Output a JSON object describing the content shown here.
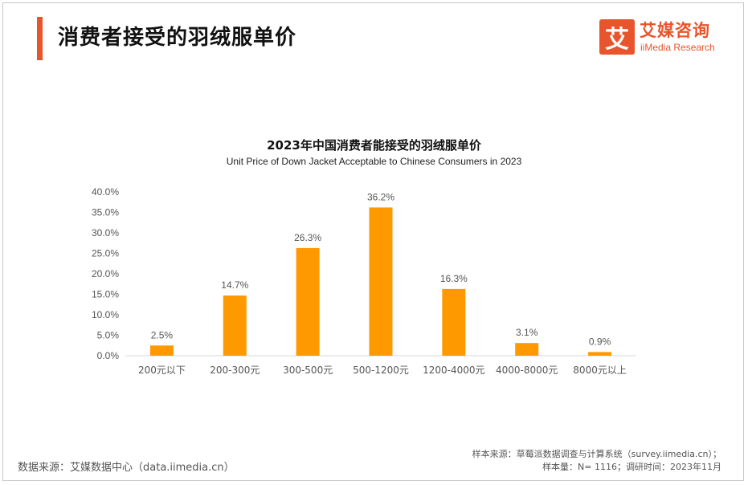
{
  "header": {
    "title": "消费者接受的羽绒服单价"
  },
  "logo": {
    "mark": "艾",
    "cn": "艾媒咨询",
    "en": "iiMedia Research"
  },
  "footer": {
    "source_left": "数据来源：艾媒数据中心（data.iimedia.cn）",
    "sample_source": "样本来源：草莓派数据调查与计算系统（survey.iimedia.cn）；",
    "sample_info": "样本量：N= 1116；调研时间：2023年11月"
  },
  "colors": {
    "accent": "#e8552c",
    "bar": "#ff9900",
    "axis": "#d9d9d9",
    "text": "#555555"
  },
  "chart_data": {
    "type": "bar",
    "title": "2023年中国消费者能接受的羽绒服单价",
    "subtitle": "Unit Price of Down Jacket Acceptable to Chinese Consumers in 2023",
    "categories": [
      "200元以下",
      "200-300元",
      "300-500元",
      "500-1200元",
      "1200-4000元",
      "4000-8000元",
      "8000元以上"
    ],
    "values": [
      2.5,
      14.7,
      26.3,
      36.2,
      16.3,
      3.1,
      0.9
    ],
    "value_labels": [
      "2.5%",
      "14.7%",
      "26.3%",
      "36.2%",
      "16.3%",
      "3.1%",
      "0.9%"
    ],
    "ylim": [
      0,
      40
    ],
    "yticks": [
      0,
      5,
      10,
      15,
      20,
      25,
      30,
      35,
      40
    ],
    "ytick_labels": [
      "0.0%",
      "5.0%",
      "10.0%",
      "15.0%",
      "20.0%",
      "25.0%",
      "30.0%",
      "35.0%",
      "40.0%"
    ],
    "xlabel": "",
    "ylabel": "",
    "grid": false,
    "legend": "none"
  }
}
